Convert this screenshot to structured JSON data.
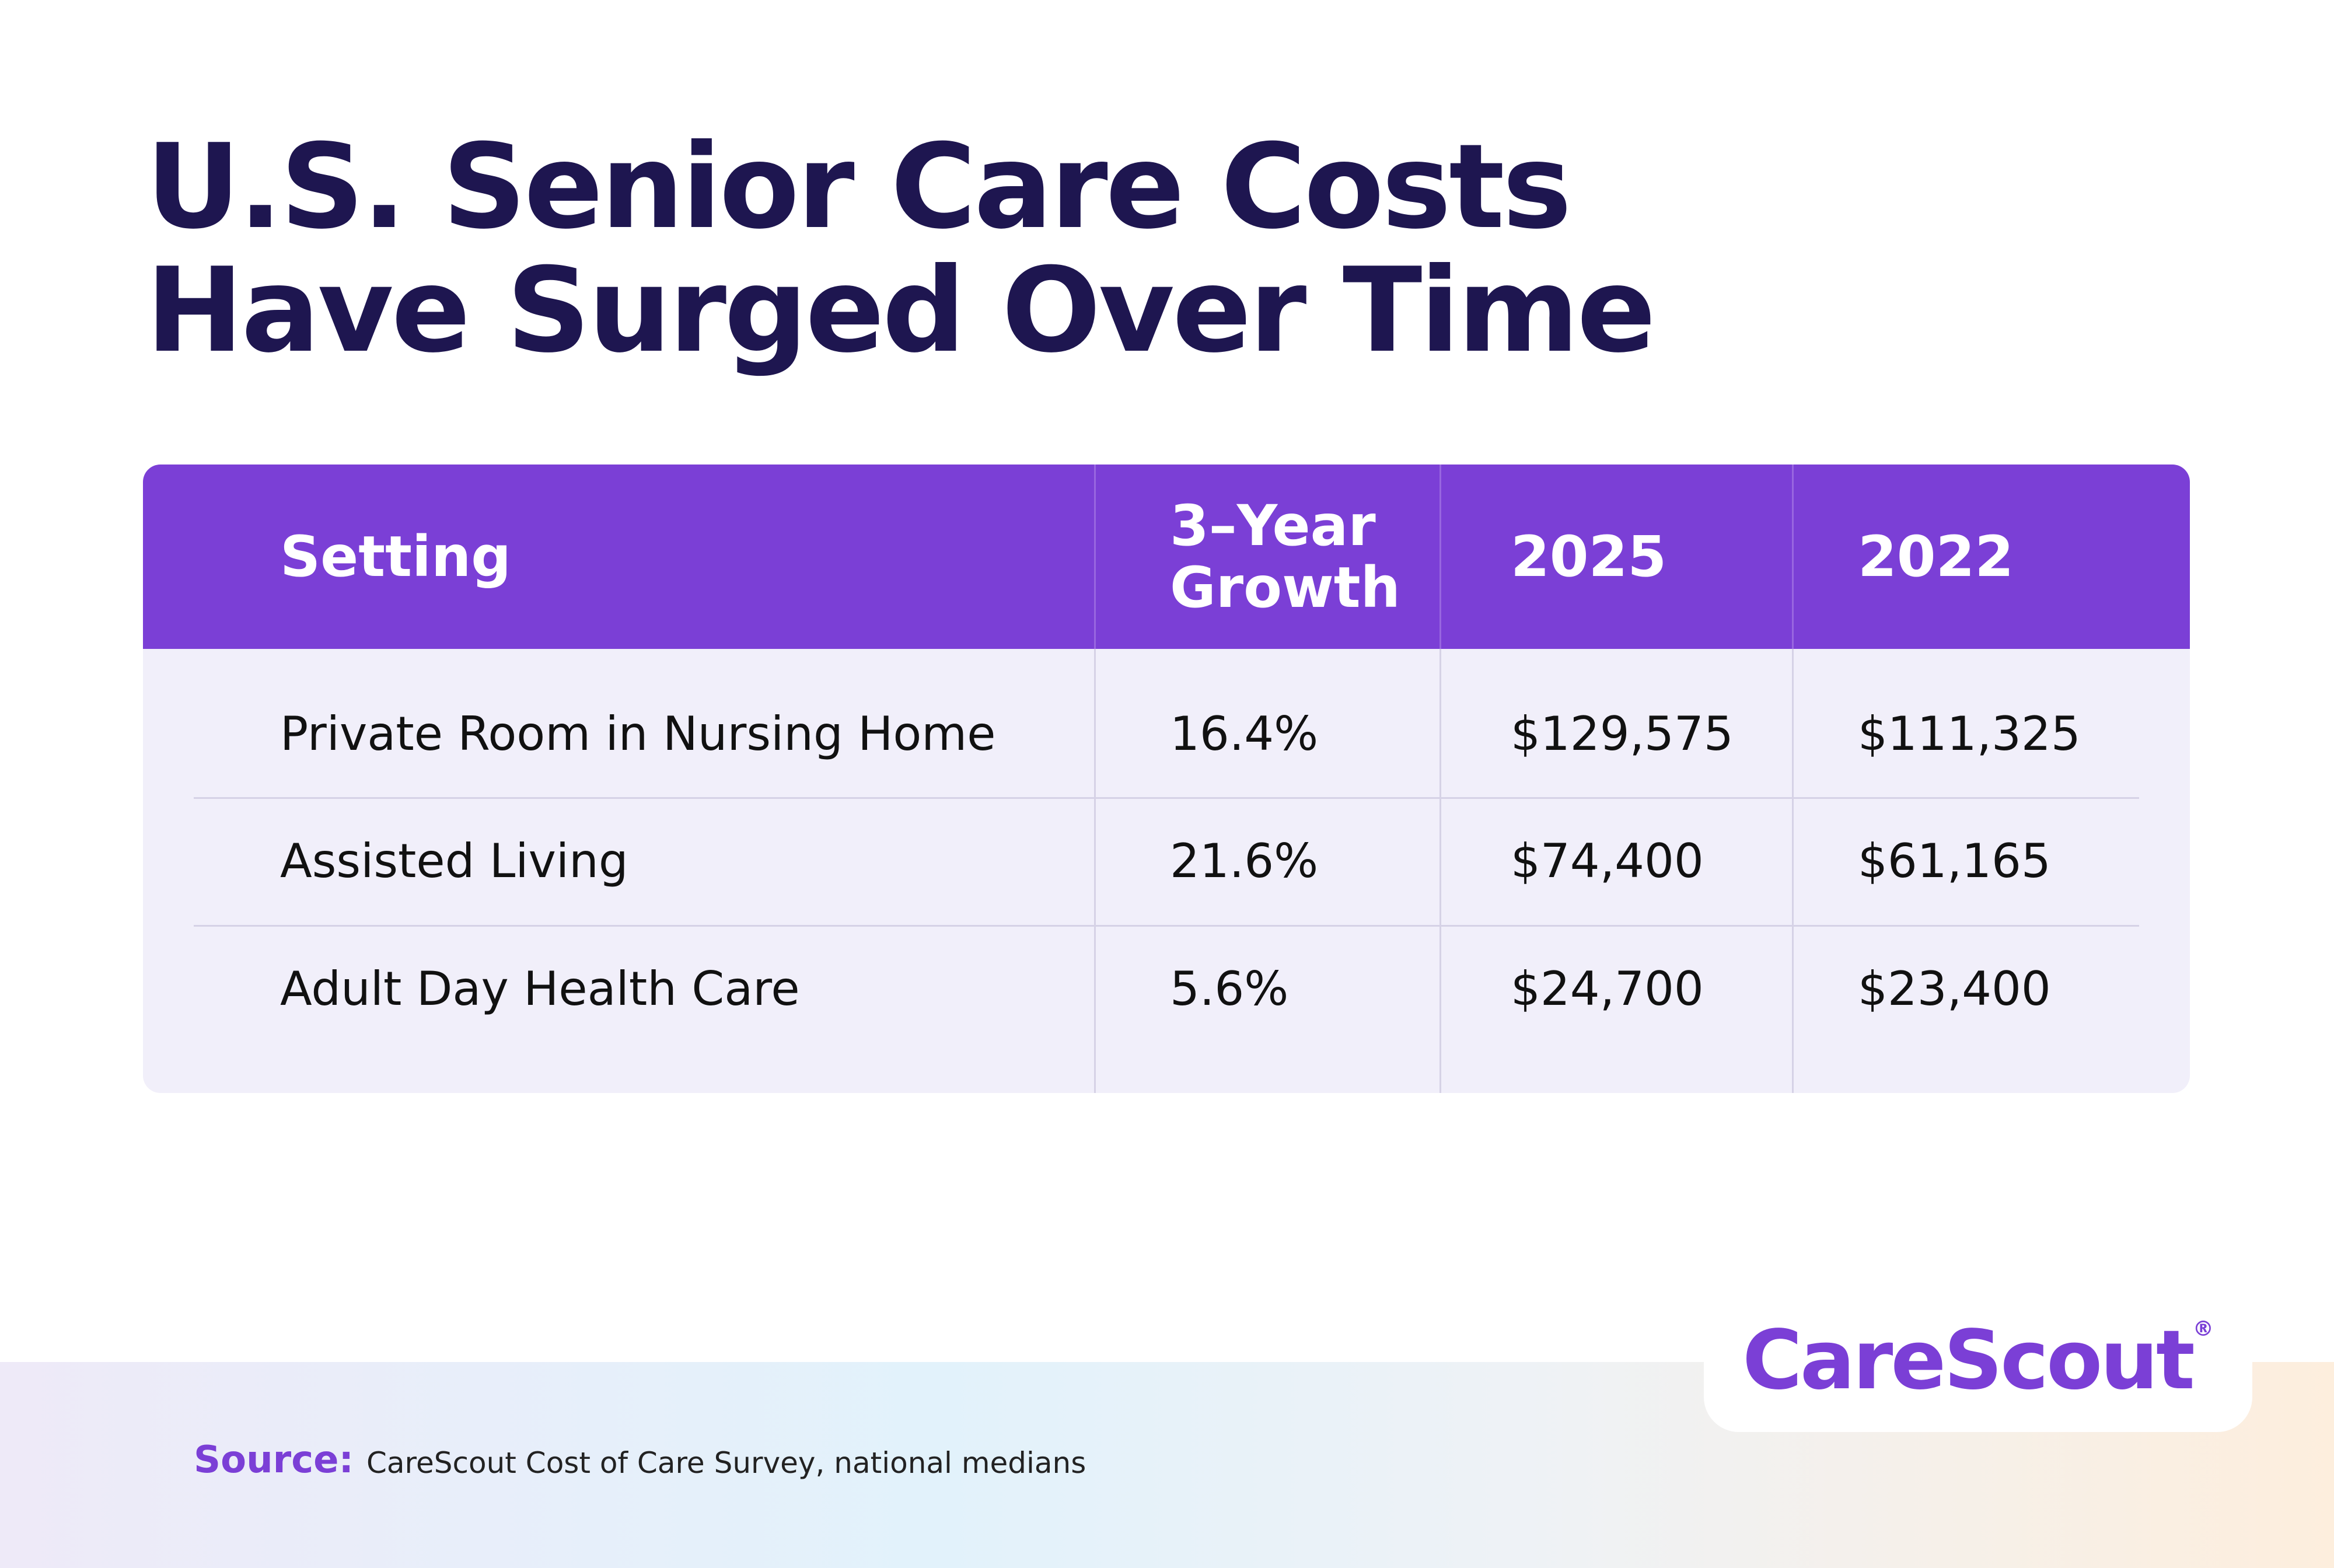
{
  "header": {
    "title": "U.S. Senior Care Costs Have Surged Over Time"
  },
  "table": {
    "columns": [
      "Setting",
      "3–Year Growth",
      "2025",
      "2022"
    ],
    "rows": [
      [
        "Private Room in Nursing Home",
        "16.4%",
        "$129,575",
        "$111,325"
      ],
      [
        "Assisted Living",
        "21.6%",
        "$74,400",
        "$61,165"
      ],
      [
        "Adult Day Health Care",
        "5.6%",
        "$24,700",
        "$23,400"
      ]
    ]
  },
  "footer": {
    "source_label": "Source:",
    "source_text": "CareScout Cost of Care Survey, national medians",
    "logo": "CareScout",
    "logo_mark": "®"
  }
}
